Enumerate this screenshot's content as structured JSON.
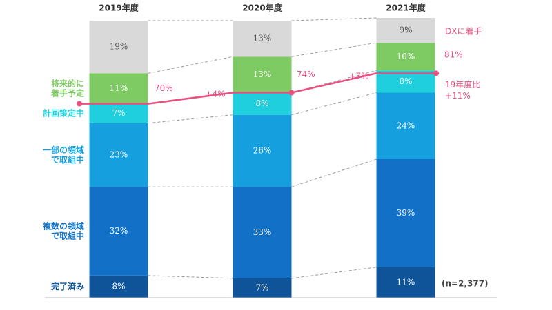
{
  "chart_data": {
    "type": "stacked_bar",
    "categories": [
      "2019年度",
      "2020年度",
      "2021年度"
    ],
    "ylim": [
      0,
      100
    ],
    "series": [
      {
        "name": "完了済み",
        "color": "#0f5499",
        "values": [
          8,
          7,
          11
        ],
        "value_labels": [
          "8%",
          "7%",
          "11%"
        ]
      },
      {
        "name": "複数の領域\nで取組中",
        "color": "#1271c6",
        "values": [
          32,
          33,
          39
        ],
        "value_labels": [
          "32%",
          "33%",
          "39%"
        ]
      },
      {
        "name": "一部の領域\nで取組中",
        "color": "#169fdf",
        "values": [
          23,
          26,
          24
        ],
        "value_labels": [
          "23%",
          "26%",
          "24%"
        ]
      },
      {
        "name": "計画策定中",
        "color": "#1fcfdd",
        "values": [
          7,
          8,
          8
        ],
        "value_labels": [
          "7%",
          "8%",
          "8%"
        ]
      },
      {
        "name": "将来的に\n着手予定",
        "color": "#7ecb63",
        "values": [
          11,
          13,
          10
        ],
        "value_labels": [
          "11%",
          "13%",
          "10%"
        ]
      },
      {
        "name": null,
        "color": "#d9d9d9",
        "values": [
          19,
          13,
          9
        ],
        "value_labels": [
          "19%",
          "13%",
          "9%"
        ]
      }
    ],
    "dx_line": {
      "name": "DXに着手",
      "color": "#e8507f",
      "values": [
        70,
        74,
        81
      ],
      "value_labels": [
        "70%",
        "74%",
        "81%"
      ],
      "changes": [
        "+4%",
        "+7%"
      ],
      "comparison": "19年度比\n+11%"
    },
    "note": "(n=2,377)"
  }
}
